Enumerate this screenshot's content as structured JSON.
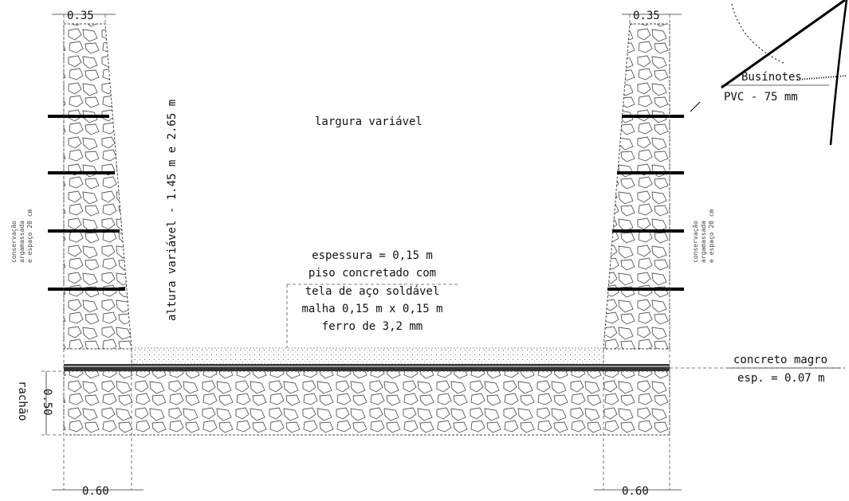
{
  "dimensions": {
    "wall_top_left": "0.35",
    "wall_top_right": "0.35",
    "base_left": "0.60",
    "base_right": "0.60",
    "rachao_thickness": "0.50"
  },
  "labels": {
    "largura": "largura variável",
    "altura": "altura variável - 1.45 m e 2.65 m",
    "slab_line1": "espessura = 0,15 m",
    "slab_line2": "piso concretado com",
    "slab_line3": "tela de aço soldável",
    "slab_line4": "malha 0,15 m x 0,15 m",
    "slab_line5": "ferro de 3,2 mm",
    "concreto_line1": "concreto magro",
    "concreto_line2": "esp. = 0.07 m",
    "rachao": "rachão",
    "buzinotes_line1": "Busínotes",
    "buzinotes_line2": "PVC - 75 mm",
    "side_note_left": [
      "conservação",
      "argamassada",
      "e espaço 20 cm"
    ],
    "side_note_right": [
      "conservação",
      "argamassada",
      "e espaço 20 cm"
    ]
  },
  "colors": {
    "ink": "#111111",
    "stone": "#555555"
  }
}
